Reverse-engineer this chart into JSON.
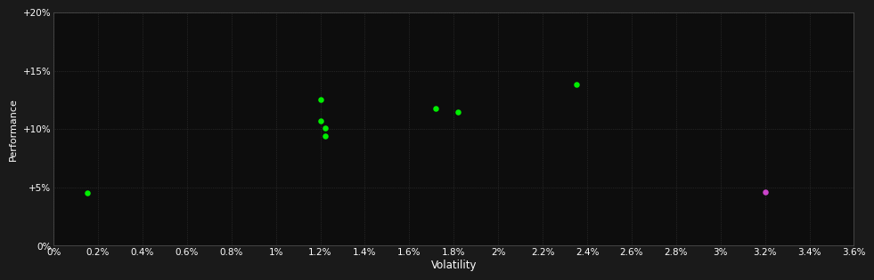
{
  "background_color": "#1a1a1a",
  "plot_bg_color": "#0d0d0d",
  "grid_color": "#3a3a3a",
  "text_color": "#ffffff",
  "xlabel": "Volatility",
  "ylabel": "Performance",
  "xlim": [
    0.0,
    0.036
  ],
  "ylim": [
    0.0,
    0.2
  ],
  "xticks": [
    0.0,
    0.002,
    0.004,
    0.006,
    0.008,
    0.01,
    0.012,
    0.014,
    0.016,
    0.018,
    0.02,
    0.022,
    0.024,
    0.026,
    0.028,
    0.03,
    0.032,
    0.034,
    0.036
  ],
  "yticks": [
    0.0,
    0.05,
    0.1,
    0.15,
    0.2
  ],
  "xtick_labels": [
    "0%",
    "0.2%",
    "0.4%",
    "0.6%",
    "0.8%",
    "1%",
    "1.2%",
    "1.4%",
    "1.6%",
    "1.8%",
    "2%",
    "2.2%",
    "2.4%",
    "2.6%",
    "2.8%",
    "3%",
    "3.2%",
    "3.4%",
    "3.6%"
  ],
  "ytick_labels": [
    "0%",
    "+5%",
    "+10%",
    "+15%",
    "+20%"
  ],
  "green_points": [
    [
      0.0015,
      0.045
    ],
    [
      0.012,
      0.125
    ],
    [
      0.012,
      0.107
    ],
    [
      0.0122,
      0.101
    ],
    [
      0.0122,
      0.094
    ],
    [
      0.0172,
      0.118
    ],
    [
      0.0182,
      0.115
    ],
    [
      0.0235,
      0.138
    ]
  ],
  "magenta_points": [
    [
      0.032,
      0.046
    ]
  ],
  "green_color": "#00ee00",
  "magenta_color": "#cc44cc",
  "marker_size": 22,
  "tick_fontsize": 7.5,
  "label_fontsize": 8.5,
  "ylabel_fontsize": 8.0
}
